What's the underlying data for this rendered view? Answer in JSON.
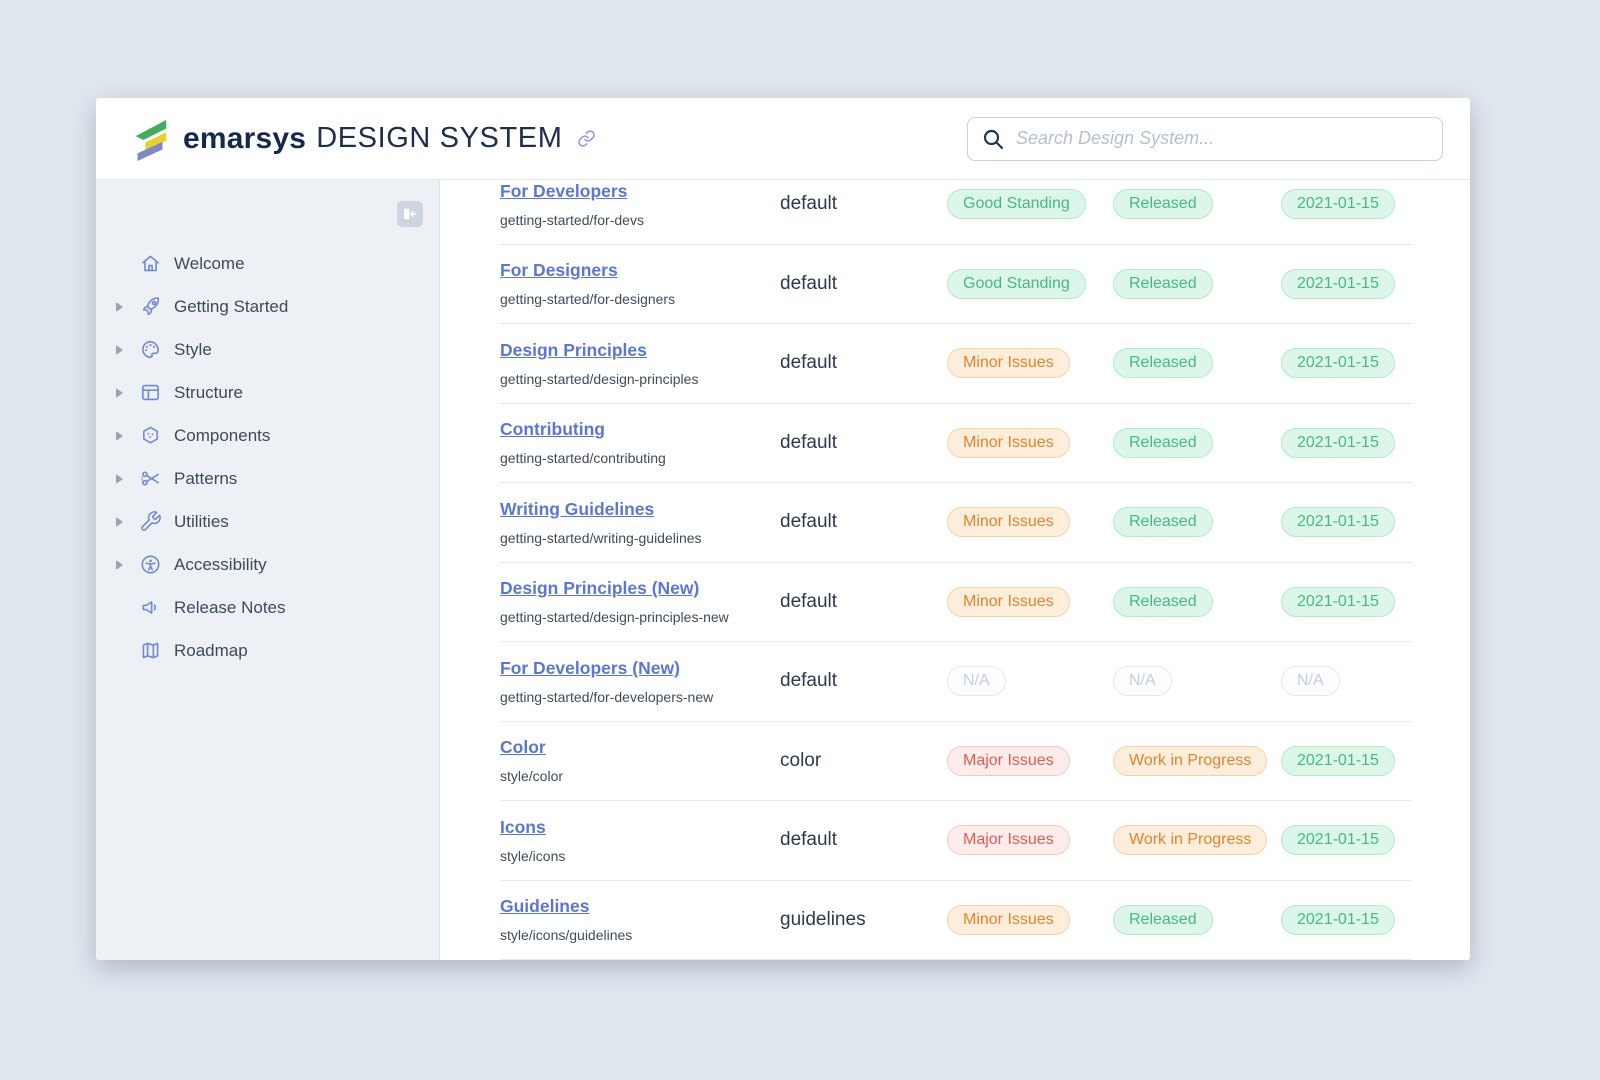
{
  "header": {
    "brand": "emarsys",
    "brand_suffix": "DESIGN SYSTEM",
    "search_placeholder": "Search Design System..."
  },
  "sidebar": {
    "items": [
      {
        "label": "Welcome",
        "icon": "home",
        "expandable": false
      },
      {
        "label": "Getting Started",
        "icon": "rocket",
        "expandable": true
      },
      {
        "label": "Style",
        "icon": "palette",
        "expandable": true
      },
      {
        "label": "Structure",
        "icon": "layout",
        "expandable": true
      },
      {
        "label": "Components",
        "icon": "hexagon",
        "expandable": true
      },
      {
        "label": "Patterns",
        "icon": "scissors",
        "expandable": true
      },
      {
        "label": "Utilities",
        "icon": "wrench",
        "expandable": true
      },
      {
        "label": "Accessibility",
        "icon": "accessibility",
        "expandable": true
      },
      {
        "label": "Release Notes",
        "icon": "megaphone",
        "expandable": false
      },
      {
        "label": "Roadmap",
        "icon": "map",
        "expandable": false
      }
    ]
  },
  "table": {
    "rows": [
      {
        "title": "For Developers",
        "path": "getting-started/for-devs",
        "type": "default",
        "status": "Good Standing",
        "status_kind": "good",
        "release": "Released",
        "release_kind": "good",
        "date": "2021-01-15",
        "date_kind": "good"
      },
      {
        "title": "For Designers",
        "path": "getting-started/for-designers",
        "type": "default",
        "status": "Good Standing",
        "status_kind": "good",
        "release": "Released",
        "release_kind": "good",
        "date": "2021-01-15",
        "date_kind": "good"
      },
      {
        "title": "Design Principles",
        "path": "getting-started/design-principles",
        "type": "default",
        "status": "Minor Issues",
        "status_kind": "warn",
        "release": "Released",
        "release_kind": "good",
        "date": "2021-01-15",
        "date_kind": "good"
      },
      {
        "title": "Contributing",
        "path": "getting-started/contributing",
        "type": "default",
        "status": "Minor Issues",
        "status_kind": "warn",
        "release": "Released",
        "release_kind": "good",
        "date": "2021-01-15",
        "date_kind": "good"
      },
      {
        "title": "Writing Guidelines",
        "path": "getting-started/writing-guidelines",
        "type": "default",
        "status": "Minor Issues",
        "status_kind": "warn",
        "release": "Released",
        "release_kind": "good",
        "date": "2021-01-15",
        "date_kind": "good"
      },
      {
        "title": "Design Principles (New)",
        "path": "getting-started/design-principles-new",
        "type": "default",
        "status": "Minor Issues",
        "status_kind": "warn",
        "release": "Released",
        "release_kind": "good",
        "date": "2021-01-15",
        "date_kind": "good"
      },
      {
        "title": "For Developers (New)",
        "path": "getting-started/for-developers-new",
        "type": "default",
        "status": "N/A",
        "status_kind": "na",
        "release": "N/A",
        "release_kind": "na",
        "date": "N/A",
        "date_kind": "na"
      },
      {
        "title": "Color",
        "path": "style/color",
        "type": "color",
        "status": "Major Issues",
        "status_kind": "bad",
        "release": "Work in Progress",
        "release_kind": "warn",
        "date": "2021-01-15",
        "date_kind": "good"
      },
      {
        "title": "Icons",
        "path": "style/icons",
        "type": "default",
        "status": "Major Issues",
        "status_kind": "bad",
        "release": "Work in Progress",
        "release_kind": "warn",
        "date": "2021-01-15",
        "date_kind": "good"
      },
      {
        "title": "Guidelines",
        "path": "style/icons/guidelines",
        "type": "guidelines",
        "status": "Minor Issues",
        "status_kind": "warn",
        "release": "Released",
        "release_kind": "good",
        "date": "2021-01-15",
        "date_kind": "good"
      }
    ]
  },
  "colors": {
    "brand_navy": "#16294d",
    "sidebar_icon": "#7289d9",
    "link": "#5b76d7",
    "logo_green": "#3fae5c",
    "logo_yellow": "#e8d22e",
    "logo_purple": "#7d88cf",
    "badge_good_text": "#45ba80",
    "badge_good_bg": "#dcf7e9",
    "badge_good_border": "#aeeccb",
    "badge_warn_text": "#e0842f",
    "badge_warn_bg": "#fdeedc",
    "badge_warn_border": "#f4d2a4",
    "badge_bad_text": "#e15b55",
    "badge_bad_bg": "#fcecea",
    "badge_bad_border": "#f5c8c4",
    "badge_na_text": "#c7ced9",
    "badge_na_bg": "#fcfdfe",
    "badge_na_border": "#e4e8ee"
  }
}
